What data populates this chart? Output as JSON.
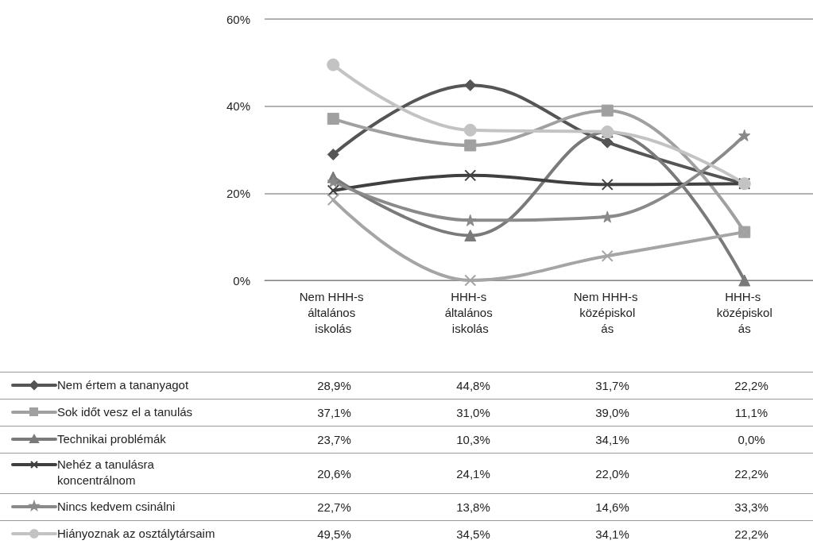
{
  "chart_data": {
    "type": "line",
    "categories": [
      "Nem HHH-s általános iskolás",
      "HHH-s általános iskolás",
      "Nem HHH-s középiskolás",
      "HHH-s középiskolás"
    ],
    "ylim": [
      0,
      60
    ],
    "yticks": [
      {
        "value": 0,
        "label": "0%"
      },
      {
        "value": 20,
        "label": "20%"
      },
      {
        "value": 40,
        "label": "40%"
      },
      {
        "value": 60,
        "label": "60%"
      }
    ],
    "grid": "y",
    "legend": "bottom",
    "series": [
      {
        "name": "Nem értem a tananyagot",
        "color": "#555555",
        "marker": "diamond",
        "values": [
          28.9,
          44.8,
          31.7,
          22.2
        ],
        "value_labels": [
          "28,9%",
          "44,8%",
          "31,7%",
          "22,2%"
        ]
      },
      {
        "name": "Sok időt vesz el a tanulás",
        "color": "#a0a0a0",
        "marker": "square",
        "values": [
          37.1,
          31.0,
          39.0,
          11.1
        ],
        "value_labels": [
          "37,1%",
          "31,0%",
          "39,0%",
          "11,1%"
        ]
      },
      {
        "name": "Technikai problémák",
        "color": "#7a7a7a",
        "marker": "triangle",
        "values": [
          23.7,
          10.3,
          34.1,
          0.0
        ],
        "value_labels": [
          "23,7%",
          "10,3%",
          "34,1%",
          "0,0%"
        ]
      },
      {
        "name": "Nehéz a tanulásra koncentrálnom",
        "color": "#404040",
        "marker": "cross",
        "values": [
          20.6,
          24.1,
          22.0,
          22.2
        ],
        "value_labels": [
          "20,6%",
          "24,1%",
          "22,0%",
          "22,2%"
        ]
      },
      {
        "name": "Nincs kedvem csinálni",
        "color": "#8a8a8a",
        "marker": "star",
        "values": [
          22.7,
          13.8,
          14.6,
          33.3
        ],
        "value_labels": [
          "22,7%",
          "13,8%",
          "14,6%",
          "33,3%"
        ]
      },
      {
        "name": "Hiányoznak az osztálytársaim",
        "color": "#c3c3c3",
        "marker": "circle",
        "values": [
          49.5,
          34.5,
          34.1,
          22.2
        ],
        "value_labels": [
          "49,5%",
          "34,5%",
          "34,1%",
          "22,2%"
        ]
      },
      {
        "color": "#a5a5a5",
        "marker": "cross",
        "values": [
          18.5,
          0,
          5.6,
          11.1
        ]
      }
    ]
  }
}
